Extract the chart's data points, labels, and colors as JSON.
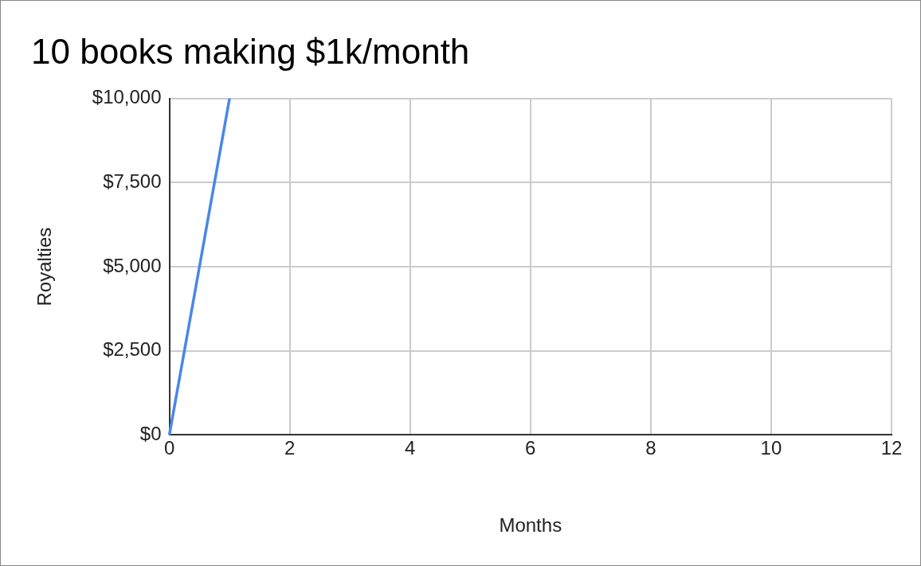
{
  "chart_data": {
    "type": "line",
    "title": "10 books making $1k/month",
    "xlabel": "Months",
    "ylabel": "Royalties",
    "x": [
      0,
      1
    ],
    "values": [
      0,
      10000
    ],
    "color": "#4a86e8",
    "xlim": [
      0,
      12
    ],
    "xticks": [
      0,
      2,
      4,
      6,
      8,
      10,
      12
    ],
    "ylim": [
      0,
      10000
    ],
    "yticks": [
      {
        "value": 0,
        "label": "$0"
      },
      {
        "value": 2500,
        "label": "$2,500"
      },
      {
        "value": 5000,
        "label": "$5,000"
      },
      {
        "value": 7500,
        "label": "$7,500"
      },
      {
        "value": 10000,
        "label": "$10,000"
      }
    ],
    "grid": true,
    "marker": "none",
    "line_style": "solid"
  }
}
